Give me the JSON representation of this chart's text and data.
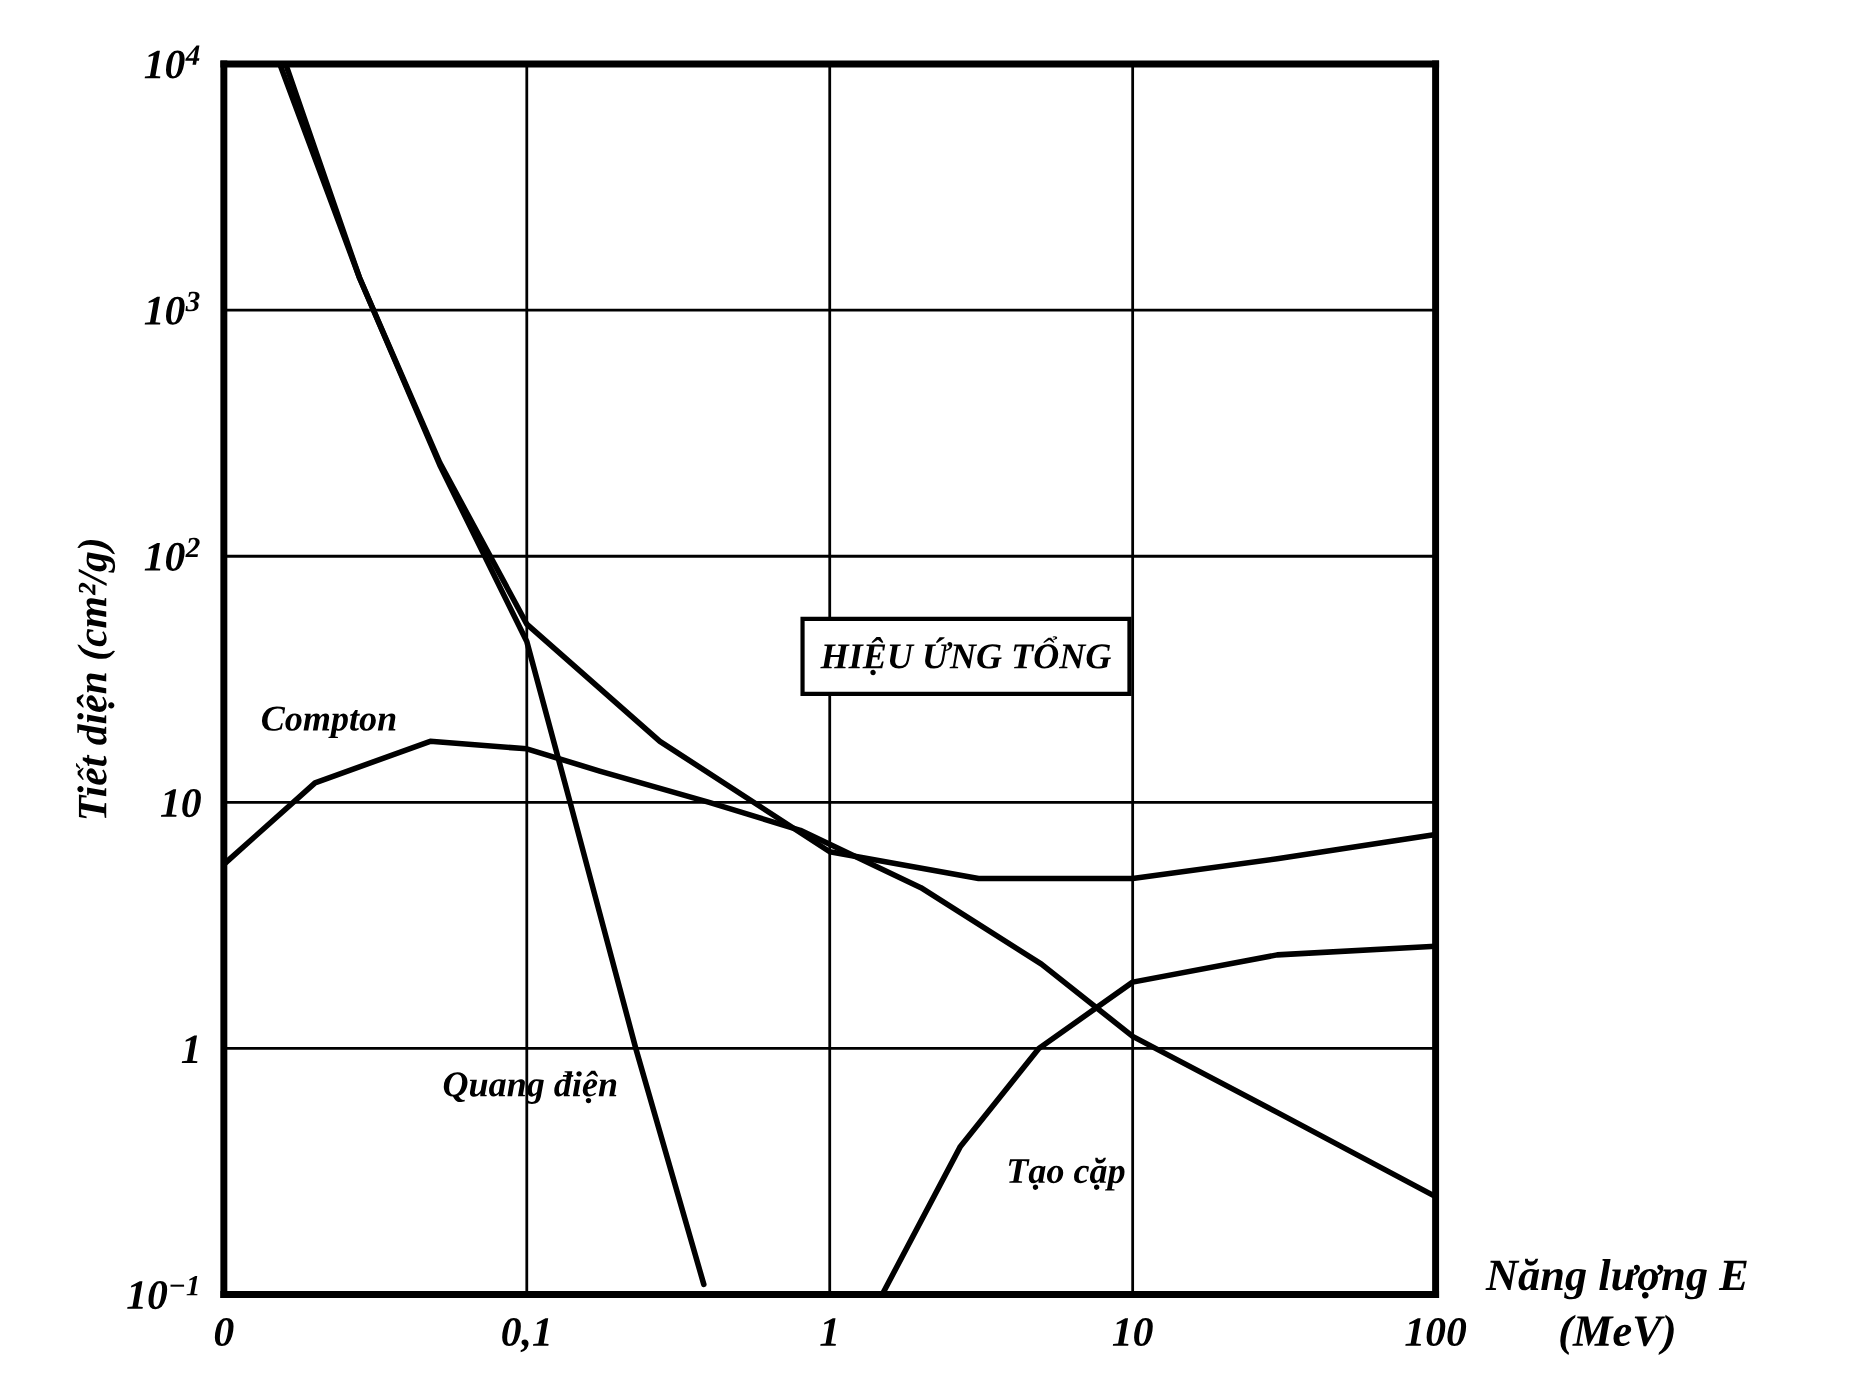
{
  "chart_data": {
    "type": "line",
    "xlabel": "Năng lượng E\n(MeV)",
    "ylabel": "Tiết diện (cm²/g)",
    "log": "xy",
    "grid": true,
    "marker": "none",
    "line_style": "solid",
    "xlim": [
      0.01,
      100
    ],
    "ylim": [
      0.1,
      10000
    ],
    "xticks": [
      {
        "value": 0.01,
        "label": "0"
      },
      {
        "value": 0.1,
        "label": "0,1"
      },
      1,
      10,
      100
    ],
    "yticks": [
      {
        "value": 0.1,
        "label": "10$^{−1}$"
      },
      1,
      10,
      {
        "value": 100,
        "label": "10$^{2}$"
      },
      {
        "value": 1000,
        "label": "10$^{3}$"
      },
      {
        "value": 10000,
        "label": "10$^{4}$"
      }
    ],
    "series": [
      {
        "name": "Compton",
        "color": "#000000",
        "x": [
          0.01,
          0.02,
          0.048,
          0.1,
          0.174,
          0.4,
          0.8,
          2,
          5,
          10,
          30,
          100
        ],
        "values": [
          5.6,
          12,
          17.7,
          16.5,
          13.4,
          10,
          7.7,
          4.5,
          2.2,
          1.12,
          0.55,
          0.25
        ]
      },
      {
        "name": "Quang điện",
        "color": "#000000",
        "x": [
          0.0153,
          0.028,
          0.0516,
          0.1,
          0.139,
          0.229,
          0.384
        ],
        "values": [
          10000,
          1360,
          235,
          45,
          10,
          1,
          0.11
        ]
      },
      {
        "name": "Tạo cặp",
        "color": "#000000",
        "x": [
          1.49,
          2.7,
          4.9,
          10,
          30,
          100
        ],
        "values": [
          0.1,
          0.4,
          1,
          1.86,
          2.4,
          2.6
        ]
      },
      {
        "name": "HIỆU ỨNG TỔNG",
        "color": "#000000",
        "x": [
          0.016,
          0.028,
          0.0516,
          0.1,
          0.275,
          1,
          3.1,
          10,
          30,
          100
        ],
        "values": [
          10000,
          1360,
          240,
          53,
          17.7,
          6.3,
          4.9,
          4.9,
          5.9,
          7.4
        ]
      }
    ]
  }
}
